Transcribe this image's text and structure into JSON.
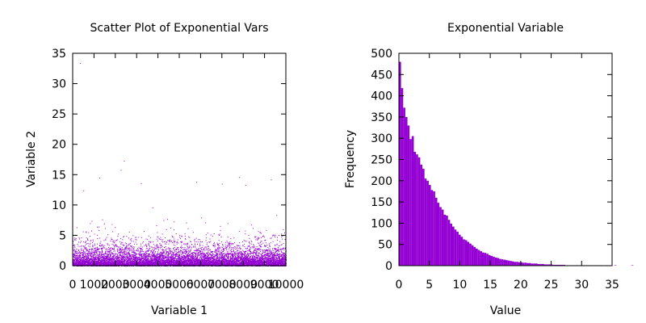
{
  "chart_data": [
    {
      "type": "scatter",
      "title": "Scatter Plot of Exponential Vars",
      "xlabel": "Variable 1",
      "ylabel": "Variable 2",
      "xlim": [
        0,
        10000
      ],
      "ylim": [
        0,
        35
      ],
      "x_ticks": [
        "0",
        "1000",
        "2000",
        "3000",
        "4000",
        "5000",
        "6000",
        "7000",
        "8000",
        "9000",
        "10000"
      ],
      "y_ticks": [
        "0",
        "5",
        "10",
        "15",
        "20",
        "25",
        "30",
        "35"
      ],
      "color": "#9400d3",
      "n_points": 10000,
      "notable_points": [
        {
          "x": 350,
          "y": 33.4
        },
        {
          "x": 2400,
          "y": 17.3
        },
        {
          "x": 2250,
          "y": 15.8
        },
        {
          "x": 1250,
          "y": 14.5
        },
        {
          "x": 500,
          "y": 12.4
        },
        {
          "x": 3200,
          "y": 13.6
        },
        {
          "x": 7800,
          "y": 14.6
        },
        {
          "x": 8100,
          "y": 13.3
        },
        {
          "x": 9300,
          "y": 14.2
        },
        {
          "x": 5800,
          "y": 13.8
        },
        {
          "x": 7000,
          "y": 13.5
        }
      ]
    },
    {
      "type": "bar",
      "title": "Exponential Variable",
      "xlabel": "Value",
      "ylabel": "Frequency",
      "xlim": [
        0,
        35
      ],
      "ylim": [
        0,
        500
      ],
      "x_ticks": [
        "0",
        "5",
        "10",
        "15",
        "20",
        "25",
        "30",
        "35"
      ],
      "y_ticks": [
        "0",
        "50",
        "100",
        "150",
        "200",
        "250",
        "300",
        "350",
        "400",
        "450",
        "500"
      ],
      "color": "#9400d3",
      "bin_width": 0.35,
      "values": [
        480,
        418,
        372,
        350,
        330,
        298,
        305,
        268,
        262,
        255,
        238,
        228,
        205,
        200,
        190,
        178,
        175,
        160,
        148,
        138,
        132,
        120,
        118,
        108,
        99,
        92,
        85,
        80,
        73,
        68,
        62,
        60,
        56,
        52,
        48,
        44,
        40,
        37,
        34,
        31,
        30,
        28,
        25,
        23,
        21,
        19,
        18,
        16,
        15,
        14,
        13,
        12,
        11,
        10,
        9,
        9,
        8,
        8,
        7,
        7,
        6,
        6,
        5,
        5,
        5,
        4,
        4,
        4,
        3,
        3,
        3,
        3,
        2,
        2,
        2,
        2,
        2,
        2,
        1,
        1,
        1,
        1,
        1,
        1,
        1,
        1,
        1,
        1,
        1,
        1,
        1,
        0,
        1,
        0,
        1,
        0,
        0,
        1,
        0,
        0,
        0,
        1,
        0,
        0,
        0,
        0,
        0,
        0,
        0,
        1,
        0,
        0,
        0,
        0,
        0,
        0,
        0,
        0,
        0,
        0,
        0,
        0,
        0,
        1,
        0,
        0,
        0,
        0,
        0,
        0,
        0,
        0,
        0,
        0,
        0,
        0,
        0,
        0,
        0,
        0,
        0,
        0,
        0,
        0,
        0,
        0,
        0,
        0,
        0,
        0,
        0,
        0,
        0,
        0,
        0,
        0,
        0,
        0,
        0,
        0,
        0,
        0,
        0,
        0,
        0,
        0,
        0,
        0,
        0,
        0,
        0,
        0,
        0,
        0,
        0,
        0,
        0,
        0,
        0,
        0,
        0,
        0,
        0,
        0,
        0,
        0,
        0,
        0,
        0,
        0,
        0,
        0,
        0,
        0,
        0,
        0,
        0,
        0,
        0,
        0,
        0,
        0,
        0,
        0,
        0,
        0,
        0,
        0,
        0,
        0,
        0,
        0,
        0,
        0,
        0,
        0,
        0,
        0,
        0,
        0,
        0,
        0,
        0,
        0,
        0,
        0,
        0,
        0,
        0,
        0,
        0,
        0,
        0,
        0,
        0,
        0,
        0,
        0,
        0,
        0,
        0,
        0,
        0,
        0,
        0,
        0,
        0,
        0,
        0,
        0,
        0,
        0,
        0,
        0,
        0,
        0,
        0,
        0,
        0,
        0,
        0,
        0,
        0,
        0,
        0,
        0,
        0,
        0,
        0,
        0,
        0,
        0,
        0,
        0,
        0,
        0,
        0,
        0,
        0,
        0,
        0,
        0,
        0,
        0,
        0,
        0,
        0,
        0,
        0,
        0,
        0,
        0,
        0,
        0,
        0,
        0,
        0,
        0,
        0,
        0,
        0,
        0,
        0,
        0,
        0,
        0,
        0,
        0,
        0,
        0,
        0,
        0,
        0,
        0,
        0,
        0,
        0,
        0,
        0,
        0,
        0,
        0,
        0,
        0,
        0,
        0,
        0,
        0,
        0,
        0,
        0,
        0,
        0,
        0,
        0,
        0,
        0,
        0,
        0,
        0,
        0,
        0,
        0,
        0,
        0,
        0,
        0,
        0,
        0,
        0,
        0,
        0,
        0,
        1
      ]
    }
  ]
}
